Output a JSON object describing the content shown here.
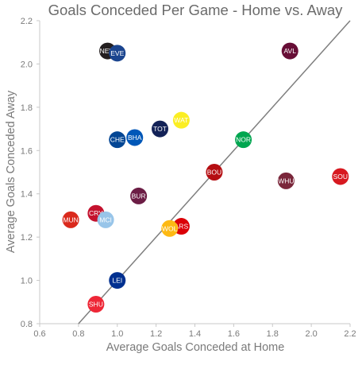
{
  "chart_data": {
    "type": "scatter",
    "title": "Goals Conceded Per Game - Home vs. Away",
    "xlabel": "Average Goals Conceded at Home",
    "ylabel": "Average Goals Conceded Away",
    "xlim": [
      0.6,
      2.2
    ],
    "ylim": [
      0.8,
      2.2
    ],
    "xticks": [
      "0.6",
      "0.8",
      "1.0",
      "1.2",
      "1.4",
      "1.6",
      "1.8",
      "2.0",
      "2.2"
    ],
    "yticks": [
      "0.8",
      "1.0",
      "1.2",
      "1.4",
      "1.6",
      "1.8",
      "2.0",
      "2.2"
    ],
    "grid": false,
    "reference_line": "y = x",
    "points": [
      {
        "label": "NEW",
        "x": 0.95,
        "y": 2.06,
        "color": "#241f20"
      },
      {
        "label": "EVE",
        "x": 1.0,
        "y": 2.05,
        "color": "#1b458f"
      },
      {
        "label": "AVL",
        "x": 1.89,
        "y": 2.06,
        "color": "#670e36"
      },
      {
        "label": "WAT",
        "x": 1.33,
        "y": 1.74,
        "color": "#fbee23"
      },
      {
        "label": "TOT",
        "x": 1.22,
        "y": 1.7,
        "color": "#132257"
      },
      {
        "label": "CHE",
        "x": 1.0,
        "y": 1.65,
        "color": "#034694"
      },
      {
        "label": "BHA",
        "x": 1.09,
        "y": 1.66,
        "color": "#0057b8"
      },
      {
        "label": "NOR",
        "x": 1.65,
        "y": 1.65,
        "color": "#00a650"
      },
      {
        "label": "BOU",
        "x": 1.5,
        "y": 1.5,
        "color": "#b50e12"
      },
      {
        "label": "SOU",
        "x": 2.15,
        "y": 1.48,
        "color": "#d71920"
      },
      {
        "label": "WHU",
        "x": 1.87,
        "y": 1.46,
        "color": "#7a263a"
      },
      {
        "label": "BUR",
        "x": 1.11,
        "y": 1.39,
        "color": "#6c1d45"
      },
      {
        "label": "CRY",
        "x": 0.89,
        "y": 1.31,
        "color": "#c4122e"
      },
      {
        "label": "MUN",
        "x": 0.76,
        "y": 1.28,
        "color": "#da291c"
      },
      {
        "label": "MCI",
        "x": 0.94,
        "y": 1.28,
        "color": "#98c5e9"
      },
      {
        "label": "ARS",
        "x": 1.33,
        "y": 1.25,
        "color": "#db0007"
      },
      {
        "label": "WOL",
        "x": 1.27,
        "y": 1.24,
        "color": "#fdb913"
      },
      {
        "label": "LEI",
        "x": 1.0,
        "y": 1.0,
        "color": "#003090"
      },
      {
        "label": "SHU",
        "x": 0.89,
        "y": 0.89,
        "color": "#ee2737"
      }
    ]
  }
}
